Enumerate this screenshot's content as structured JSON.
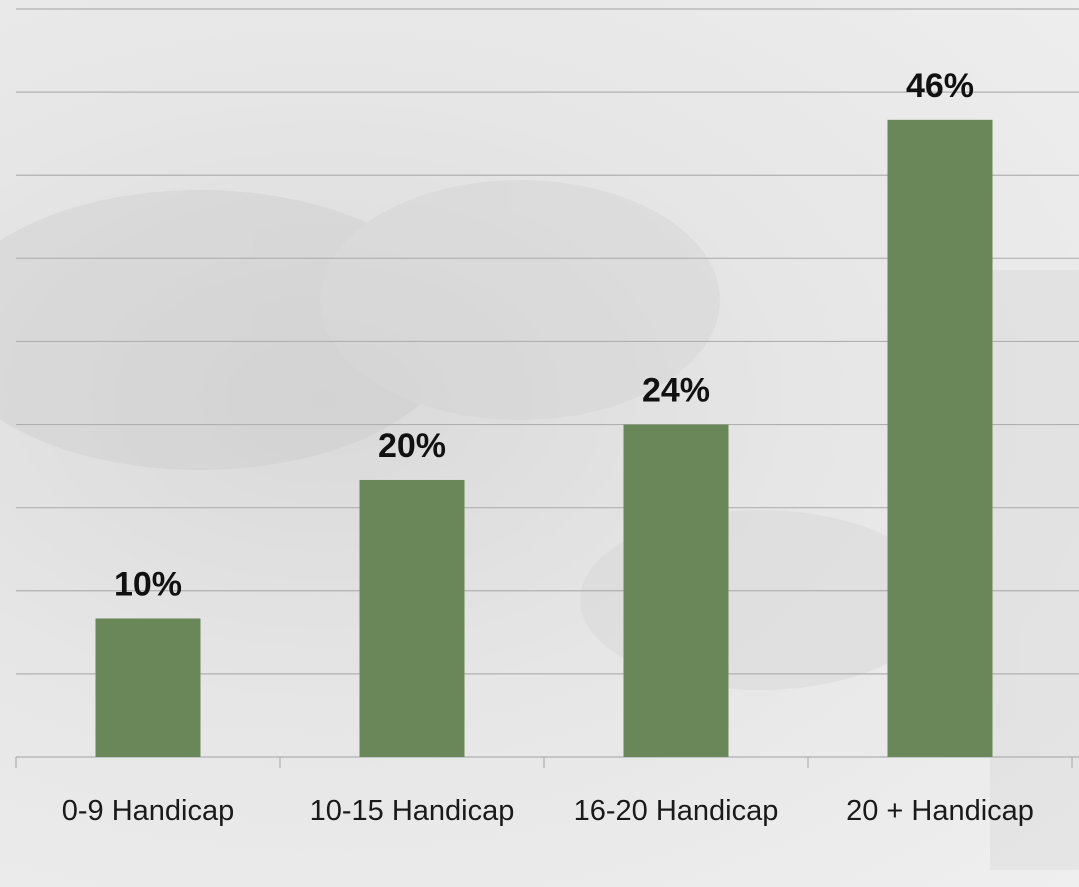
{
  "chart_data": {
    "type": "bar",
    "categories": [
      "0-9 Handicap",
      "10-15 Handicap",
      "16-20 Handicap",
      "20 + Handicap"
    ],
    "values": [
      10,
      20,
      24,
      46
    ],
    "value_labels": [
      "10%",
      "20%",
      "24%",
      "46%"
    ],
    "color": "#6a8759",
    "ylim": [
      0,
      54
    ],
    "yticks": [
      0,
      6,
      12,
      18,
      24,
      30,
      36,
      42,
      48,
      54
    ],
    "show_ytick_labels": false,
    "grid": true
  }
}
